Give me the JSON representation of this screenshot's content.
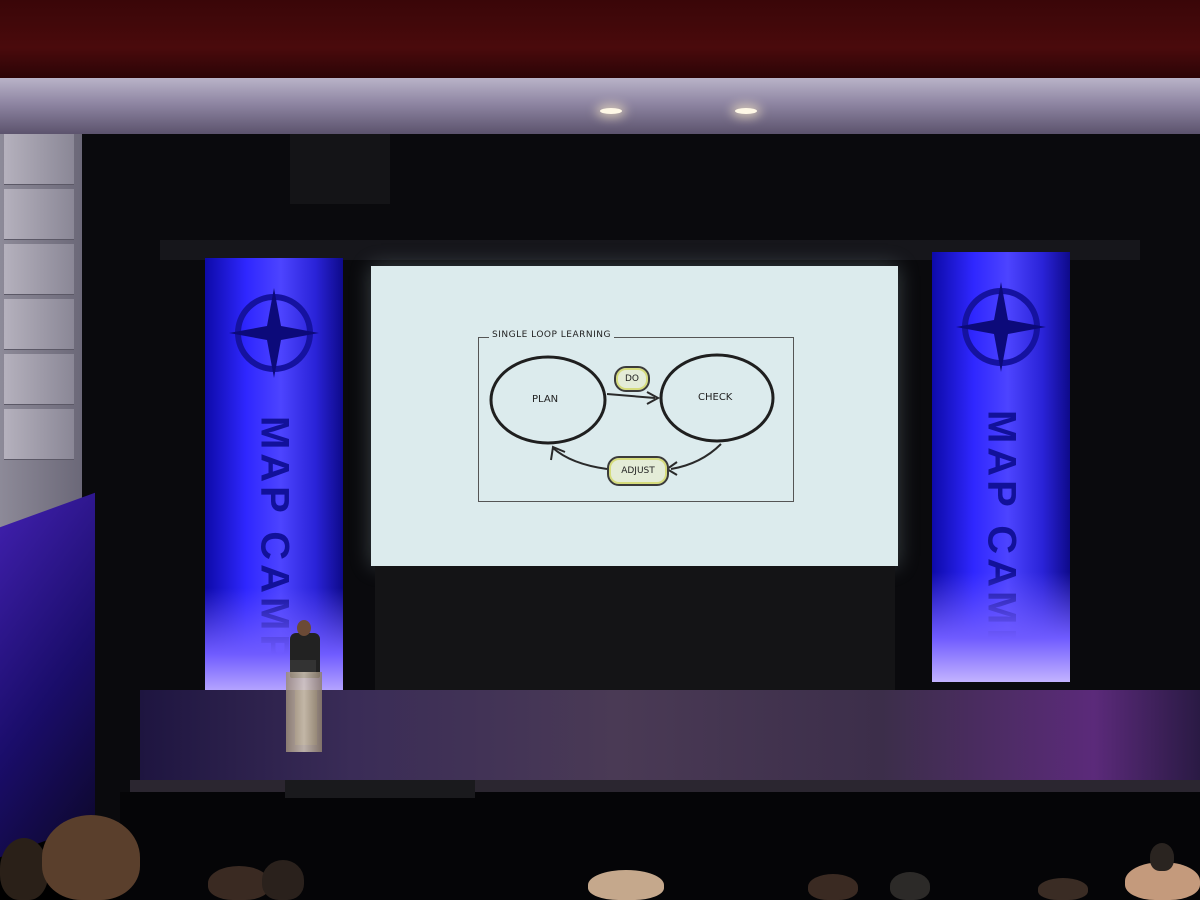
{
  "scene": "conference stage with presentation slide",
  "banners": {
    "left_text": "MAP CAMP",
    "right_text": "MAP CAMP"
  },
  "slide": {
    "frame_title": "SINGLE LOOP LEARNING",
    "nodes": {
      "plan": "PLAN",
      "check": "CHECK",
      "do": "DO",
      "adjust": "ADJUST"
    }
  },
  "colors": {
    "banner_blue": "#2f27ff",
    "ceiling_red": "#4a0a0c",
    "screen_bg": "#dcebed",
    "pill_highlight": "#d6dc7c"
  }
}
